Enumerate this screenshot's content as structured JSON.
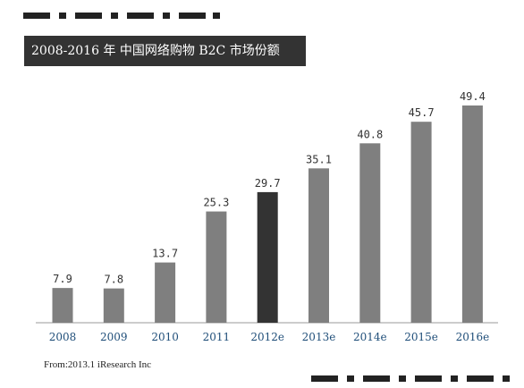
{
  "title": "2008-2016 年 中国网络购物 B2C 市场份额",
  "source": "From:2013.1 iResearch Inc",
  "colors": {
    "bar": "#7f7f7f",
    "highlight_bar": "#333333",
    "tick_text": "#1f4e79",
    "axis": "#999999",
    "title_bg": "#333333",
    "decoration": "#222222"
  },
  "chart_data": {
    "type": "bar",
    "title": "2008-2016 年 中国网络购物 B2C 市场份额",
    "categories": [
      "2008",
      "2009",
      "2010",
      "2011",
      "2012e",
      "2013e",
      "2014e",
      "2015e",
      "2016e"
    ],
    "values": [
      7.9,
      7.8,
      13.7,
      25.3,
      29.7,
      35.1,
      40.8,
      45.7,
      49.4
    ],
    "data_labels": [
      "7.9",
      "7.8",
      "13.7",
      "25.3",
      "29.7",
      "35.1",
      "40.8",
      "45.7",
      "49.4"
    ],
    "highlight_index": 4,
    "ylim": [
      0,
      50
    ],
    "grid": false,
    "legend": "none"
  }
}
